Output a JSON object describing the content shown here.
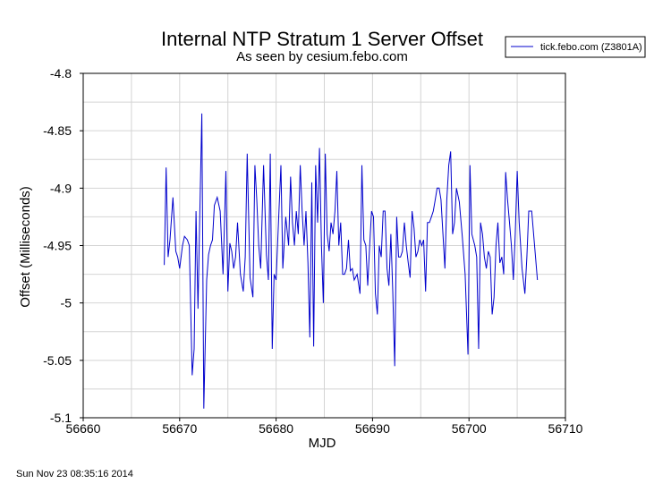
{
  "chart_data": {
    "type": "line",
    "title": "Internal NTP Stratum 1 Server Offset",
    "subtitle": "As seen by cesium.febo.com",
    "xlabel": "MJD",
    "ylabel": "Offset (Milliseconds)",
    "xlim": [
      56660,
      56710
    ],
    "ylim": [
      -5.1,
      -4.8
    ],
    "xticks": [
      "56660",
      "56670",
      "56680",
      "56690",
      "56700",
      "56710"
    ],
    "yticks": [
      "-4.8",
      "-4.85",
      "-4.9",
      "-4.95",
      "-5",
      "-5.05",
      "-5.1"
    ],
    "xtick_values": [
      56660,
      56670,
      56680,
      56690,
      56700,
      56710
    ],
    "ytick_values": [
      -4.8,
      -4.85,
      -4.9,
      -4.95,
      -5,
      -5.05,
      -5.1
    ],
    "grid": true,
    "legend_position": "top-right",
    "series": [
      {
        "name": "tick.febo.com (Z3801A)",
        "color": "#0000cc",
        "x": [
          56668.4,
          56668.6,
          56668.8,
          56669.0,
          56669.3,
          56669.6,
          56669.8,
          56670.0,
          56670.3,
          56670.5,
          56670.8,
          56671.0,
          56671.3,
          56671.5,
          56671.7,
          56671.9,
          56672.1,
          56672.3,
          56672.5,
          56672.8,
          56673.0,
          56673.2,
          56673.4,
          56673.6,
          56673.9,
          56674.2,
          56674.5,
          56674.8,
          56675.0,
          56675.2,
          56675.4,
          56675.6,
          56675.8,
          56676.0,
          56676.3,
          56676.6,
          56676.8,
          56677.0,
          56677.3,
          56677.6,
          56677.8,
          56678.0,
          56678.2,
          56678.4,
          56678.7,
          56679.0,
          56679.2,
          56679.4,
          56679.6,
          56679.8,
          56680.0,
          56680.3,
          56680.5,
          56680.7,
          56681.0,
          56681.3,
          56681.5,
          56681.7,
          56681.9,
          56682.1,
          56682.3,
          56682.5,
          56682.7,
          56682.9,
          56683.1,
          56683.3,
          56683.5,
          56683.7,
          56683.9,
          56684.1,
          56684.3,
          56684.5,
          56684.7,
          56684.9,
          56685.1,
          56685.3,
          56685.5,
          56685.7,
          56685.9,
          56686.1,
          56686.3,
          56686.5,
          56686.7,
          56686.9,
          56687.1,
          56687.3,
          56687.5,
          56687.7,
          56687.9,
          56688.1,
          56688.4,
          56688.7,
          56688.9,
          56689.1,
          56689.3,
          56689.5,
          56689.7,
          56689.9,
          56690.1,
          56690.3,
          56690.5,
          56690.7,
          56690.9,
          56691.1,
          56691.3,
          56691.5,
          56691.7,
          56691.9,
          56692.1,
          56692.3,
          56692.5,
          56692.7,
          56692.9,
          56693.1,
          56693.3,
          56693.5,
          56693.7,
          56693.9,
          56694.1,
          56694.3,
          56694.5,
          56694.7,
          56694.9,
          56695.1,
          56695.3,
          56695.5,
          56695.7,
          56695.9,
          56696.1,
          56696.3,
          56696.5,
          56696.7,
          56696.9,
          56697.1,
          56697.3,
          56697.5,
          56697.7,
          56697.9,
          56698.1,
          56698.3,
          56698.5,
          56698.7,
          56699.0,
          56699.3,
          56699.6,
          56699.9,
          56700.1,
          56700.3,
          56700.6,
          56700.8,
          56701.0,
          56701.2,
          56701.4,
          56701.6,
          56701.8,
          56702.0,
          56702.2,
          56702.4,
          56702.6,
          56702.8,
          56703.0,
          56703.2,
          56703.4,
          56703.6,
          56703.8,
          56704.0,
          56704.2,
          56704.4,
          56704.6,
          56704.8,
          56705.0,
          56705.2,
          56705.5,
          56705.8,
          56706.0,
          56706.2,
          56706.5,
          56706.8,
          56707.1
        ],
        "values": [
          -4.967,
          -4.882,
          -4.96,
          -4.945,
          -4.908,
          -4.955,
          -4.96,
          -4.97,
          -4.95,
          -4.942,
          -4.945,
          -4.95,
          -5.063,
          -5.04,
          -4.92,
          -5.005,
          -4.92,
          -4.835,
          -5.092,
          -4.98,
          -4.958,
          -4.95,
          -4.945,
          -4.915,
          -4.908,
          -4.92,
          -4.975,
          -4.885,
          -4.99,
          -4.948,
          -4.955,
          -4.97,
          -4.96,
          -4.93,
          -4.975,
          -4.99,
          -4.96,
          -4.87,
          -4.978,
          -4.995,
          -4.88,
          -4.91,
          -4.95,
          -4.97,
          -4.88,
          -4.958,
          -4.98,
          -4.87,
          -5.04,
          -4.975,
          -4.98,
          -4.92,
          -4.88,
          -4.97,
          -4.925,
          -4.95,
          -4.89,
          -4.93,
          -4.95,
          -4.92,
          -4.94,
          -4.88,
          -4.92,
          -4.95,
          -4.92,
          -4.965,
          -5.03,
          -4.895,
          -5.038,
          -4.88,
          -4.93,
          -4.865,
          -4.95,
          -5.0,
          -4.87,
          -4.94,
          -4.955,
          -4.93,
          -4.94,
          -4.92,
          -4.885,
          -4.95,
          -4.93,
          -4.975,
          -4.975,
          -4.97,
          -4.945,
          -4.972,
          -4.97,
          -4.98,
          -4.975,
          -4.992,
          -4.88,
          -4.945,
          -4.95,
          -4.985,
          -4.95,
          -4.92,
          -4.925,
          -4.992,
          -5.01,
          -4.95,
          -4.96,
          -4.92,
          -4.92,
          -4.97,
          -4.985,
          -4.94,
          -4.99,
          -5.055,
          -4.925,
          -4.96,
          -4.96,
          -4.955,
          -4.93,
          -4.95,
          -4.965,
          -4.978,
          -4.92,
          -4.935,
          -4.96,
          -4.955,
          -4.945,
          -4.95,
          -4.945,
          -4.99,
          -4.93,
          -4.93,
          -4.925,
          -4.92,
          -4.91,
          -4.9,
          -4.9,
          -4.91,
          -4.94,
          -4.97,
          -4.91,
          -4.88,
          -4.868,
          -4.94,
          -4.93,
          -4.9,
          -4.912,
          -4.942,
          -4.975,
          -5.045,
          -4.88,
          -4.94,
          -4.95,
          -4.96,
          -5.04,
          -4.93,
          -4.94,
          -4.96,
          -4.97,
          -4.955,
          -4.96,
          -5.01,
          -4.995,
          -4.95,
          -4.93,
          -4.965,
          -4.96,
          -4.975,
          -4.886,
          -4.91,
          -4.93,
          -4.95,
          -4.98,
          -4.94,
          -4.885,
          -4.93,
          -4.97,
          -4.992,
          -4.96,
          -4.92,
          -4.92,
          -4.95,
          -4.98
        ]
      }
    ]
  },
  "legend_label": "tick.febo.com (Z3801A)",
  "timestamp": "Sun Nov 23 08:35:16 2014"
}
